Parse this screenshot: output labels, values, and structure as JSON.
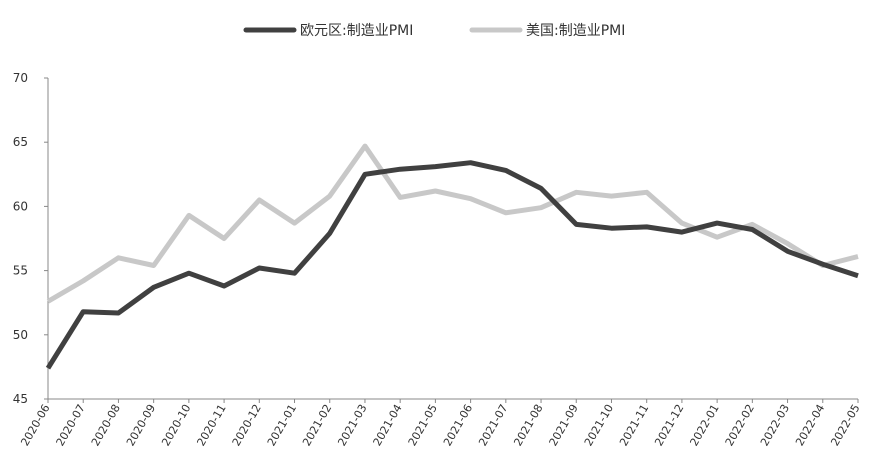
{
  "chart_data": {
    "type": "line",
    "x": [
      "2020-06",
      "2020-07",
      "2020-08",
      "2020-09",
      "2020-10",
      "2020-11",
      "2020-12",
      "2021-01",
      "2021-02",
      "2021-03",
      "2021-04",
      "2021-05",
      "2021-06",
      "2021-07",
      "2021-08",
      "2021-09",
      "2021-10",
      "2021-11",
      "2021-12",
      "2022-01",
      "2022-02",
      "2022-03",
      "2022-04",
      "2022-05"
    ],
    "ylim": [
      45,
      70
    ],
    "yticks": [
      45,
      50,
      55,
      60,
      65,
      70
    ],
    "grid": false,
    "legend_position": "top",
    "series": [
      {
        "name": "欧元区:制造业PMI",
        "color": "#404040",
        "values": [
          47.4,
          51.8,
          51.7,
          53.7,
          54.8,
          53.8,
          55.2,
          54.8,
          57.9,
          62.5,
          62.9,
          63.1,
          63.4,
          62.8,
          61.4,
          58.6,
          58.3,
          58.4,
          58.0,
          58.7,
          58.2,
          56.5,
          55.5,
          54.6
        ]
      },
      {
        "name": "美国:制造业PMI",
        "color": "#c8c8c8",
        "values": [
          52.6,
          54.2,
          56.0,
          55.4,
          59.3,
          57.5,
          60.5,
          58.7,
          60.8,
          64.7,
          60.7,
          61.2,
          60.6,
          59.5,
          59.9,
          61.1,
          60.8,
          61.1,
          58.7,
          57.6,
          58.6,
          57.1,
          55.4,
          56.1
        ]
      }
    ]
  }
}
